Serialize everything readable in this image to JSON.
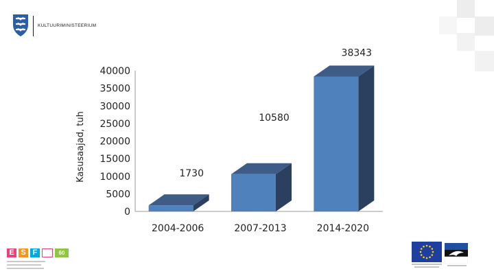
{
  "header": {
    "ministry_name": "KULTUURIMINISTEERIUM",
    "logo_icon": "estonian-coat-of-arms-icon"
  },
  "footer": {
    "esf_logo_text": [
      "E",
      "S",
      "F"
    ],
    "esf_badge": "60",
    "eu_logo_icon": "eu-flag-icon",
    "partner_logo_icon": "swallow-emblem-icon"
  },
  "colors": {
    "bar_front": "#4f81bd",
    "bar_top": "#3f5c86",
    "bar_side": "#2b405e",
    "accent_navy": "#1f3f9e"
  },
  "chart_data": {
    "type": "bar",
    "title": "",
    "xlabel": "",
    "ylabel": "Kasusaajad, tuh",
    "categories": [
      "2004-2006",
      "2007-2013",
      "2014-2020"
    ],
    "values": [
      1730,
      10580,
      38343
    ],
    "data_labels": [
      "1730",
      "10580",
      "38343"
    ],
    "ylim": [
      0,
      40000
    ],
    "y_ticks": [
      0,
      5000,
      10000,
      15000,
      20000,
      25000,
      30000,
      35000,
      40000
    ],
    "grid": false,
    "legend": "none",
    "style": "3d-column"
  }
}
